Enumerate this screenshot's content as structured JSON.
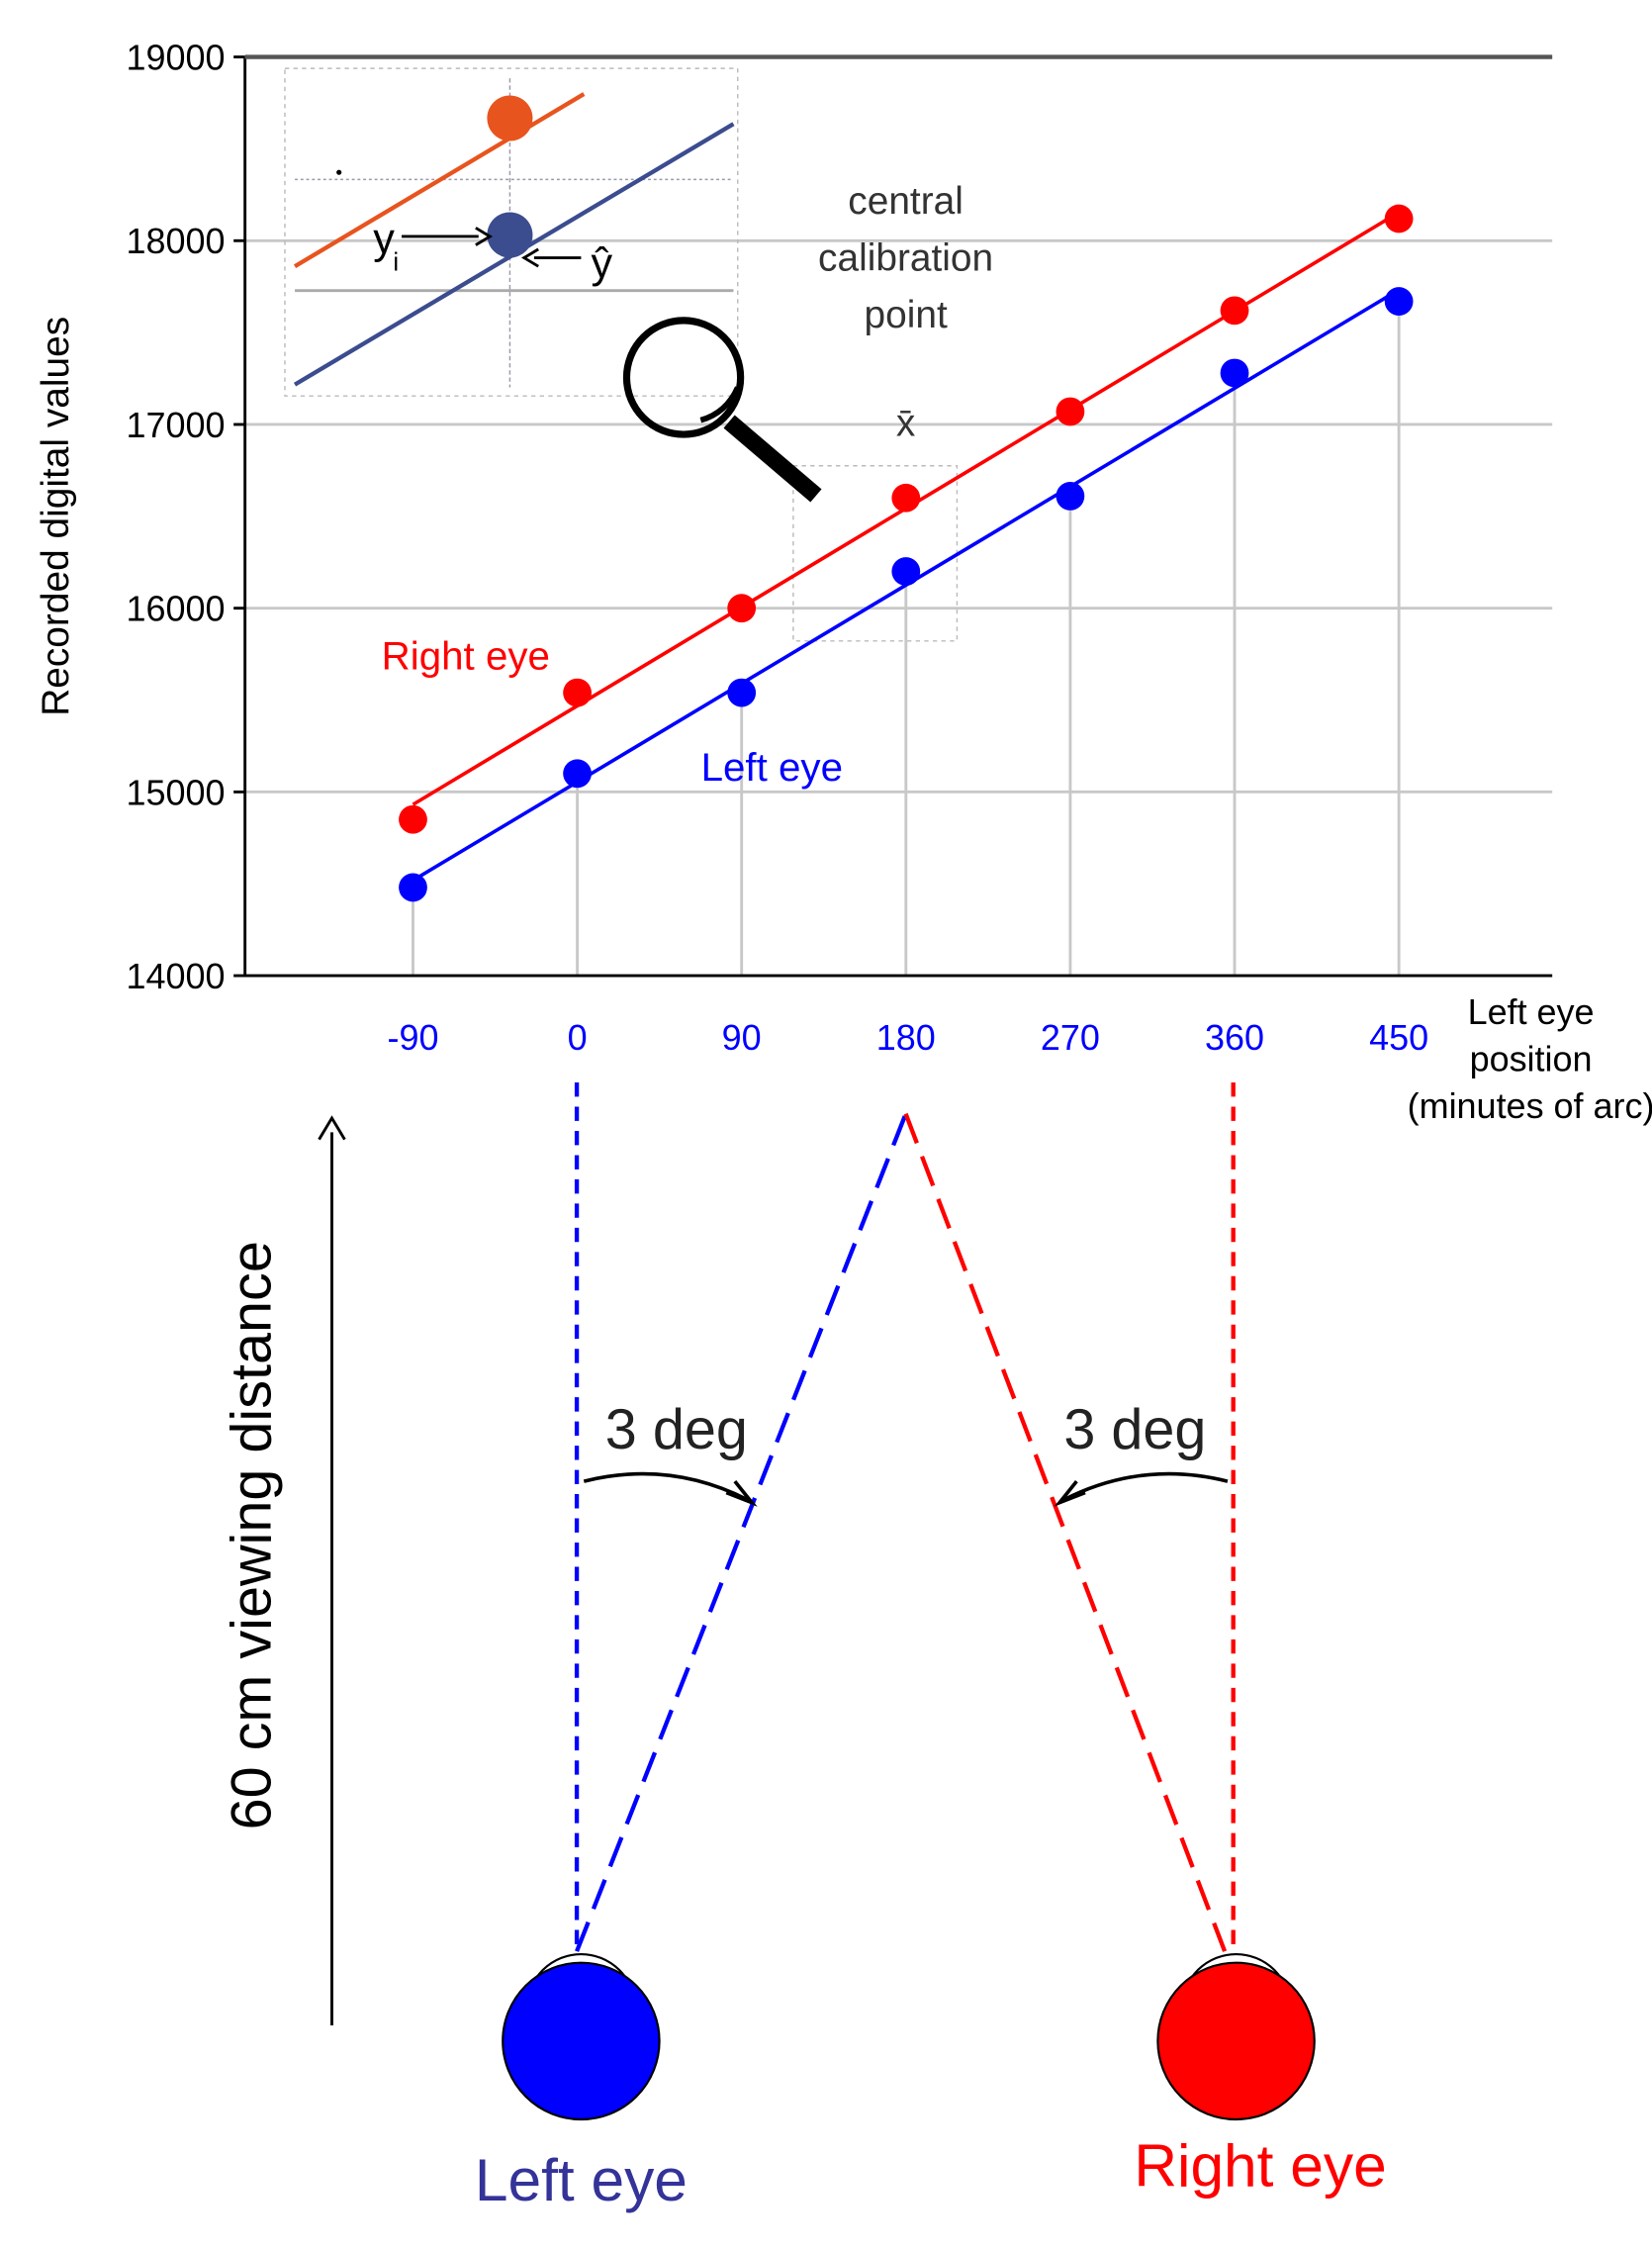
{
  "chart_data": {
    "type": "scatter",
    "ylabel": "Recorded digital values",
    "xlabel": [
      "Left eye",
      "position",
      "(minutes of arc)"
    ],
    "x": [
      -90,
      0,
      90,
      180,
      270,
      360,
      450
    ],
    "series": [
      {
        "name": "Right eye",
        "color": "#ff0000",
        "values": [
          14850,
          15540,
          16000,
          16600,
          17070,
          17620,
          18120
        ]
      },
      {
        "name": "Left eye",
        "color": "#0000ff",
        "values": [
          14480,
          15100,
          15540,
          16200,
          16610,
          17280,
          17670
        ]
      }
    ],
    "xlim": [
      -182,
      534
    ],
    "ylim": [
      14000,
      19000
    ],
    "xticks": [
      -90,
      0,
      90,
      180,
      270,
      360,
      450
    ],
    "yticks": [
      14000,
      15000,
      16000,
      17000,
      18000,
      19000
    ],
    "xtick_color": "#0000ff",
    "grid": true,
    "fit_lines": true,
    "annotations": {
      "calibration": [
        "central",
        "calibration",
        "point"
      ],
      "mean": "x̄"
    },
    "inset": {
      "yi": "y",
      "yi_sub": "i",
      "yhat": "ŷ"
    }
  },
  "diagram": {
    "distance_label": "60 cm viewing distance",
    "left_angle": "3 deg",
    "right_angle": "3 deg",
    "left_eye": "Left eye",
    "right_eye": "Right eye"
  }
}
